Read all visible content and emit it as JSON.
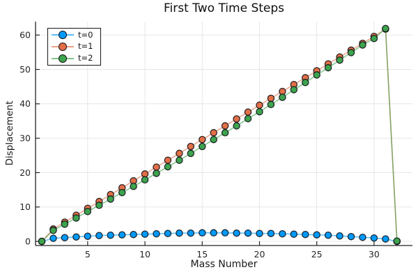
{
  "figure": {
    "title": "First Two Time Steps",
    "xlabel": "Mass Number",
    "ylabel": "Displacement"
  },
  "legend": {
    "position": "top-left",
    "entries": [
      {
        "label": "t=0",
        "color": "#009AFA"
      },
      {
        "label": "t=1",
        "color": "#E36F47"
      },
      {
        "label": "t=2",
        "color": "#3DA44E"
      }
    ]
  },
  "chart_data": {
    "type": "line",
    "title": "First Two Time Steps",
    "xlabel": "Mass Number",
    "ylabel": "Displacement",
    "marker": "circle",
    "grid": true,
    "legend_position": "top-left",
    "background": "#FFFFFF",
    "grid_color": "#E4E4E4",
    "axis_color": "#242424",
    "marker_outline_color": "#14141A",
    "xticks": [
      5,
      10,
      15,
      20,
      25,
      30
    ],
    "yticks": [
      0,
      10,
      20,
      30,
      40,
      50,
      60
    ],
    "xlim": [
      0.45,
      33.35
    ],
    "ylim": [
      -1.2,
      63.9
    ],
    "x": [
      1,
      2,
      3,
      4,
      5,
      6,
      7,
      8,
      9,
      10,
      11,
      12,
      13,
      14,
      15,
      16,
      17,
      18,
      19,
      20,
      21,
      22,
      23,
      24,
      25,
      26,
      27,
      28,
      29,
      30,
      31,
      32
    ],
    "series": [
      {
        "name": "t=0",
        "color": "#009AFA",
        "values": [
          0,
          0.9,
          1.1,
          1.3,
          1.5,
          1.7,
          1.8,
          1.9,
          2.0,
          2.1,
          2.2,
          2.3,
          2.4,
          2.4,
          2.5,
          2.5,
          2.5,
          2.4,
          2.4,
          2.3,
          2.3,
          2.2,
          2.1,
          2.0,
          1.9,
          1.8,
          1.6,
          1.4,
          1.2,
          1.0,
          0.7,
          0.0
        ]
      },
      {
        "name": "t=1",
        "color": "#E36F47",
        "values": [
          0,
          3.6,
          5.6,
          7.6,
          9.6,
          11.6,
          13.6,
          15.6,
          17.6,
          19.6,
          21.6,
          23.6,
          25.6,
          27.6,
          29.6,
          31.6,
          33.6,
          35.6,
          37.6,
          39.6,
          41.6,
          43.6,
          45.6,
          47.6,
          49.6,
          51.6,
          53.6,
          55.6,
          57.6,
          59.6,
          61.7,
          0.0
        ]
      },
      {
        "name": "t=2",
        "color": "#3DA44E",
        "values": [
          0,
          3.2,
          5.0,
          6.8,
          8.7,
          10.5,
          12.3,
          14.2,
          16.0,
          17.9,
          19.8,
          21.7,
          23.6,
          25.6,
          27.6,
          29.6,
          31.6,
          33.6,
          35.7,
          37.7,
          39.8,
          41.9,
          44.1,
          46.2,
          48.4,
          50.5,
          52.7,
          54.9,
          57.1,
          59.0,
          61.9,
          0.1
        ]
      }
    ]
  }
}
